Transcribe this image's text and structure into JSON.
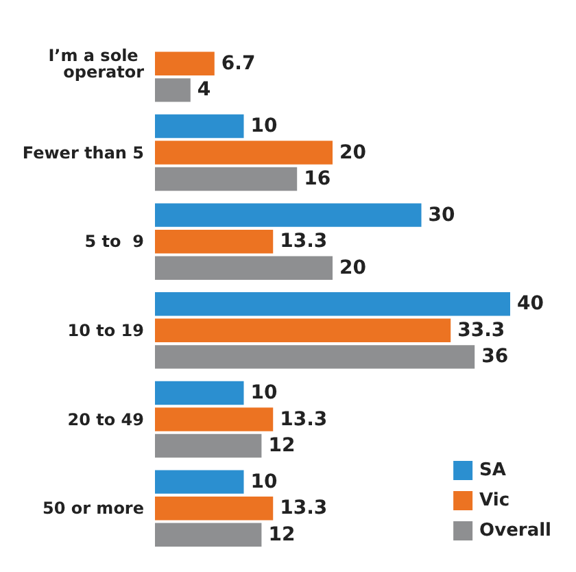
{
  "chart_data": {
    "type": "bar",
    "orientation": "horizontal",
    "categories": [
      "I’m a sole operator",
      "Fewer than 5",
      "5 to  9",
      "10 to 19",
      "20 to 49",
      "50 or more"
    ],
    "series": [
      {
        "name": "SA",
        "color": "#2b8fd0",
        "values": [
          null,
          10,
          30,
          40,
          10,
          10
        ]
      },
      {
        "name": "Vic",
        "color": "#ec7322",
        "values": [
          6.7,
          20,
          13.3,
          33.3,
          13.3,
          13.3
        ]
      },
      {
        "name": "Overall",
        "color": "#8e8f91",
        "values": [
          4,
          16,
          20,
          36,
          12,
          12
        ]
      }
    ],
    "data_labels": true,
    "tick_labels": "y",
    "legend": "bottom right"
  }
}
